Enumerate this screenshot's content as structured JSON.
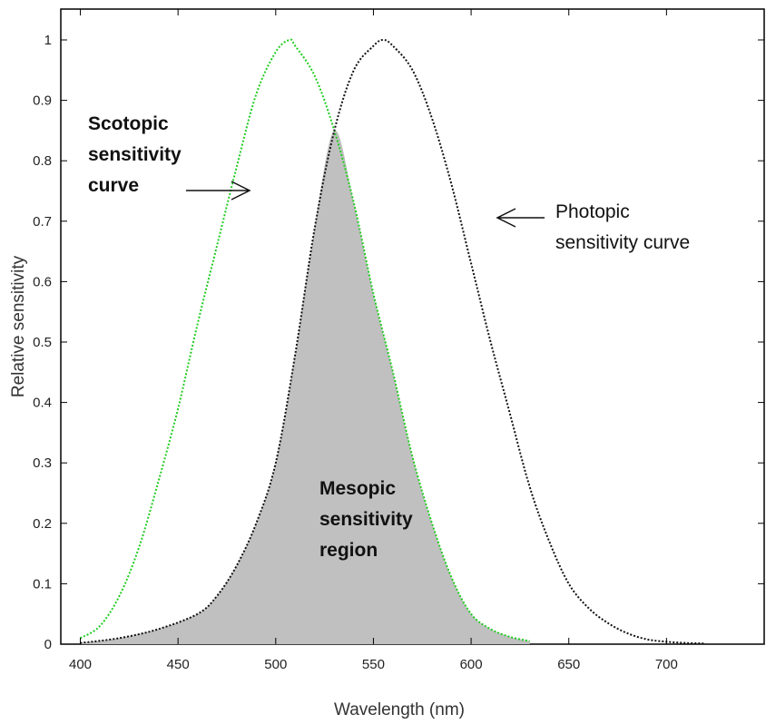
{
  "chart_data": {
    "type": "line",
    "title": "",
    "xlabel": "Wavelength (nm)",
    "ylabel": "Relative sensitivity",
    "xlim": [
      390,
      750
    ],
    "ylim": [
      0,
      1
    ],
    "grid": false,
    "legend": "none",
    "xticks": [
      {
        "value": 400,
        "label": "400"
      },
      {
        "value": 450,
        "label": "450"
      },
      {
        "value": 500,
        "label": "500"
      },
      {
        "value": 550,
        "label": "550"
      },
      {
        "value": 600,
        "label": "600"
      },
      {
        "value": 650,
        "label": "650"
      },
      {
        "value": 700,
        "label": "700"
      }
    ],
    "yticks": [
      {
        "value": 0,
        "label": "0"
      },
      {
        "value": 0.1,
        "label": "0.1"
      },
      {
        "value": 0.2,
        "label": "0.2"
      },
      {
        "value": 0.3,
        "label": "0.3"
      },
      {
        "value": 0.4,
        "label": "0.4"
      },
      {
        "value": 0.5,
        "label": "0.5"
      },
      {
        "value": 0.6,
        "label": "0.6"
      },
      {
        "value": 0.7,
        "label": "0.7"
      },
      {
        "value": 0.8,
        "label": "0.8"
      },
      {
        "value": 0.9,
        "label": "0.9"
      },
      {
        "value": 1,
        "label": "1"
      }
    ],
    "series": [
      {
        "name": "Scotopic sensitivity curve",
        "color": "#22cc22",
        "style": "dotted",
        "x": [
          400,
          410,
          420,
          430,
          440,
          450,
          460,
          470,
          480,
          490,
          500,
          507,
          510,
          520,
          530,
          540,
          550,
          560,
          570,
          580,
          590,
          600,
          610,
          620,
          630
        ],
        "y": [
          0.01,
          0.03,
          0.08,
          0.16,
          0.27,
          0.39,
          0.53,
          0.66,
          0.79,
          0.91,
          0.98,
          1.0,
          0.99,
          0.94,
          0.85,
          0.73,
          0.58,
          0.45,
          0.31,
          0.2,
          0.11,
          0.05,
          0.025,
          0.012,
          0.005
        ]
      },
      {
        "name": "Photopic sensitivity curve",
        "color": "#111111",
        "style": "dotted",
        "x": [
          400,
          420,
          440,
          460,
          470,
          480,
          490,
          500,
          510,
          520,
          530,
          540,
          550,
          555,
          560,
          570,
          580,
          590,
          600,
          610,
          620,
          630,
          640,
          650,
          660,
          670,
          680,
          690,
          700,
          710,
          720
        ],
        "y": [
          0.002,
          0.01,
          0.025,
          0.05,
          0.08,
          0.13,
          0.2,
          0.3,
          0.48,
          0.69,
          0.85,
          0.95,
          0.99,
          1.0,
          0.99,
          0.95,
          0.87,
          0.76,
          0.63,
          0.5,
          0.38,
          0.26,
          0.17,
          0.1,
          0.06,
          0.035,
          0.018,
          0.008,
          0.004,
          0.002,
          0.001
        ]
      }
    ],
    "region": {
      "name": "Mesopic sensitivity region",
      "fill": "#c0c0c0",
      "x": [
        400,
        420,
        440,
        460,
        470,
        480,
        490,
        500,
        510,
        520,
        530,
        540,
        550,
        560,
        570,
        580,
        590,
        600,
        610,
        620,
        630
      ],
      "y": [
        0.002,
        0.01,
        0.025,
        0.05,
        0.08,
        0.13,
        0.2,
        0.3,
        0.48,
        0.69,
        0.85,
        0.73,
        0.58,
        0.45,
        0.31,
        0.2,
        0.11,
        0.05,
        0.025,
        0.012,
        0.005
      ]
    },
    "annotations": [
      {
        "id": "scotopic",
        "lines": [
          "Scotopic",
          "sensitivity",
          "curve"
        ]
      },
      {
        "id": "photopic",
        "lines": [
          "Photopic",
          "sensitivity curve"
        ]
      },
      {
        "id": "mesopic",
        "lines": [
          "Mesopic",
          "sensitivity",
          "region"
        ]
      }
    ]
  }
}
